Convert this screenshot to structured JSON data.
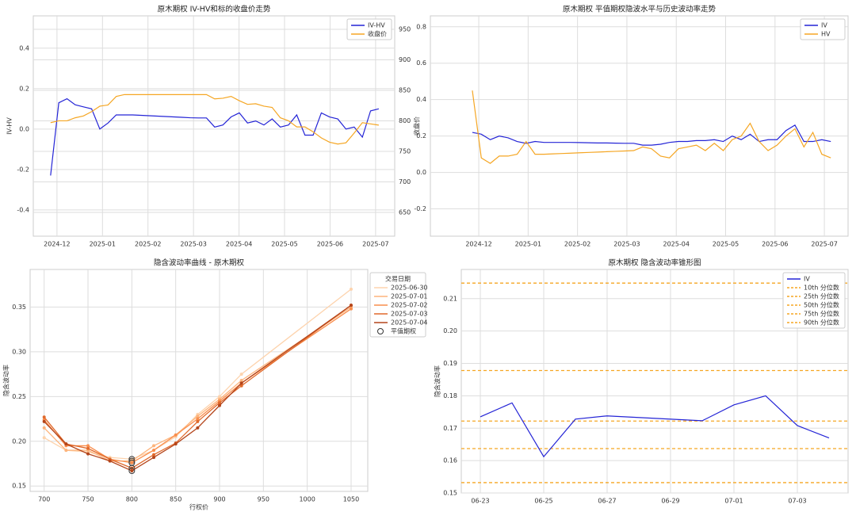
{
  "chart_data": [
    {
      "type": "line",
      "title": "原木期权 IV-HV和标的收盘价走势",
      "ylabel": "IV-HV",
      "y2label": "收盘价",
      "y_color": "#1f77b4",
      "y2_color": "#d62728",
      "grid": true,
      "legend": "upper right",
      "xticks": [
        "2024-12",
        "2025-01",
        "2025-02",
        "2025-03",
        "2025-04",
        "2025-05",
        "2025-06",
        "2025-07"
      ],
      "ylim": [
        -0.53,
        0.56
      ],
      "yticks": [
        -0.4,
        -0.2,
        {
          "value": 0,
          "label": "0.0"
        },
        0.2,
        0.4
      ],
      "y2lim": [
        611,
        972
      ],
      "y2ticks": [
        650,
        700,
        750,
        800,
        850,
        900,
        950
      ],
      "series": [
        {
          "name": "IV-HV",
          "color": "#2424d6",
          "values": [
            -0.23,
            0.13,
            0.15,
            0.12,
            0.11,
            0.1,
            0.0,
            0.03,
            0.07,
            0.07,
            0.07,
            0.068,
            0.066,
            0.064,
            0.062,
            0.06,
            0.058,
            0.056,
            0.055,
            0.055,
            0.01,
            0.02,
            0.06,
            0.08,
            0.03,
            0.04,
            0.02,
            0.05,
            0.01,
            0.02,
            0.07,
            -0.03,
            -0.03,
            0.08,
            0.06,
            0.05,
            0.0,
            0.01,
            -0.04,
            0.09,
            0.1
          ]
        },
        {
          "name": "收盘价",
          "color": "#f5a623",
          "axis": "y2",
          "values": [
            797,
            800,
            800,
            805,
            808,
            815,
            824,
            826,
            840,
            843,
            843,
            843,
            843,
            843,
            843,
            843,
            843,
            843,
            843,
            843,
            836,
            837,
            840,
            833,
            827,
            828,
            824,
            822,
            805,
            800,
            790,
            790,
            782,
            772,
            765,
            762,
            764,
            780,
            797,
            795,
            793
          ]
        }
      ]
    },
    {
      "type": "line",
      "title": "原木期权 平值期权隐波水平与历史波动率走势",
      "grid": true,
      "legend": "upper right",
      "xticks": [
        "2024-12",
        "2025-01",
        "2025-02",
        "2025-03",
        "2025-04",
        "2025-05",
        "2025-06",
        "2025-07"
      ],
      "ylim": [
        -0.35,
        0.86
      ],
      "yticks": [
        -0.2,
        {
          "value": 0,
          "label": "0.0"
        },
        0.2,
        0.4,
        0.6,
        0.8
      ],
      "series": [
        {
          "name": "IV",
          "color": "#2424d6",
          "values": [
            0.22,
            0.21,
            0.18,
            0.2,
            0.19,
            0.17,
            0.16,
            0.17,
            0.165,
            0.165,
            0.165,
            0.165,
            0.164,
            0.163,
            0.162,
            0.162,
            0.161,
            0.16,
            0.16,
            0.15,
            0.15,
            0.155,
            0.165,
            0.17,
            0.17,
            0.175,
            0.175,
            0.18,
            0.17,
            0.2,
            0.18,
            0.21,
            0.17,
            0.18,
            0.18,
            0.23,
            0.26,
            0.17,
            0.17,
            0.18,
            0.17
          ]
        },
        {
          "name": "HV",
          "color": "#f5a623",
          "values": [
            0.45,
            0.08,
            0.05,
            0.09,
            0.09,
            0.1,
            0.17,
            0.1,
            0.1,
            0.102,
            0.104,
            0.106,
            0.108,
            0.11,
            0.112,
            0.114,
            0.116,
            0.118,
            0.12,
            0.14,
            0.13,
            0.09,
            0.08,
            0.13,
            0.14,
            0.15,
            0.12,
            0.16,
            0.12,
            0.18,
            0.2,
            0.27,
            0.17,
            0.12,
            0.15,
            0.2,
            0.24,
            0.14,
            0.22,
            0.1,
            0.08
          ]
        }
      ]
    },
    {
      "type": "line",
      "title": "隐含波动率曲线 - 原木期权",
      "xlabel": "行权价",
      "ylabel": "隐含波动率",
      "grid": true,
      "legend": "upper right",
      "legend_title": "交易日期",
      "atm_label": "平值期权",
      "atm_strike": 800,
      "x": [
        700,
        725,
        750,
        775,
        800,
        825,
        850,
        875,
        900,
        925,
        1050
      ],
      "xlim": [
        684,
        1069
      ],
      "xticks": [
        700,
        750,
        800,
        850,
        900,
        950,
        1000,
        1050
      ],
      "ylim": [
        0.144,
        0.392
      ],
      "yticks": [
        0.15,
        {
          "value": 0.2,
          "label": "0.20"
        },
        0.25,
        {
          "value": 0.3,
          "label": "0.30"
        },
        0.35
      ],
      "series": [
        {
          "name": "2025-06-30",
          "color": "#fdd3ad",
          "values": [
            0.204,
            0.19,
            0.188,
            0.182,
            0.18,
            0.19,
            0.205,
            0.23,
            0.25,
            0.275,
            0.37
          ]
        },
        {
          "name": "2025-07-01",
          "color": "#fdb47c",
          "values": [
            0.215,
            0.19,
            0.19,
            0.178,
            0.178,
            0.195,
            0.207,
            0.228,
            0.247,
            0.268,
            0.35
          ]
        },
        {
          "name": "2025-07-02",
          "color": "#f98e4d",
          "values": [
            0.224,
            0.195,
            0.195,
            0.18,
            0.176,
            0.19,
            0.207,
            0.225,
            0.245,
            0.265,
            0.348
          ]
        },
        {
          "name": "2025-07-03",
          "color": "#e0692b",
          "values": [
            0.227,
            0.197,
            0.192,
            0.18,
            0.17,
            0.185,
            0.198,
            0.222,
            0.243,
            0.262,
            0.352
          ]
        },
        {
          "name": "2025-07-04",
          "color": "#b4451b",
          "values": [
            0.222,
            0.197,
            0.186,
            0.178,
            0.167,
            0.182,
            0.197,
            0.215,
            0.24,
            0.265,
            0.352
          ]
        }
      ]
    },
    {
      "type": "line",
      "title": "原木期权 隐含波动率锥形图",
      "ylabel": "隐含波动率",
      "grid": true,
      "legend": "upper right",
      "x": [
        "06-23",
        "06-24",
        "06-25",
        "06-26",
        "06-27",
        "06-30",
        "07-01",
        "07-02",
        "07-03",
        "07-04"
      ],
      "xticks": [
        "06-23",
        "06-25",
        "06-27",
        "06-29",
        "07-01",
        "07-03"
      ],
      "ylim": [
        0.15,
        0.219
      ],
      "yticks": [
        0.15,
        0.16,
        0.17,
        0.18,
        0.19,
        {
          "value": 0.2,
          "label": "0.20"
        },
        0.21
      ],
      "series": [
        {
          "name": "IV",
          "color": "#2424d6",
          "values": [
            0.1735,
            0.1778,
            0.1612,
            0.1728,
            0.1738,
            0.1723,
            0.1772,
            0.18,
            0.1708,
            0.167
          ]
        }
      ],
      "lines": [
        {
          "name": "10th 分位数",
          "color": "#f5a623",
          "value": 0.1532
        },
        {
          "name": "25th 分位数",
          "color": "#f5a623",
          "value": 0.1637
        },
        {
          "name": "50th 分位数",
          "color": "#f5a623",
          "value": 0.1722
        },
        {
          "name": "75th 分位数",
          "color": "#f5a623",
          "value": 0.1878
        },
        {
          "name": "90th 分位数",
          "color": "#f5a623",
          "value": 0.2148
        }
      ]
    }
  ]
}
